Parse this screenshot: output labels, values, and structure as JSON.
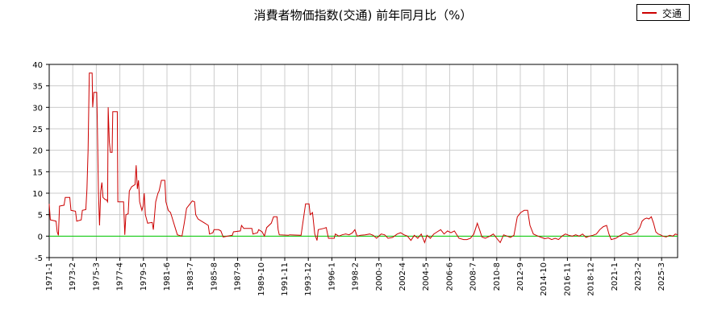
{
  "chart_data": {
    "type": "line",
    "title": "消費者物価指数(交通) 前年同月比（%）",
    "xlabel": "",
    "ylabel": "",
    "ylim": [
      -5,
      40
    ],
    "grid": true,
    "legend_position": "top-right",
    "y_ticks": [
      "40",
      "35",
      "30",
      "25",
      "20",
      "15",
      "10",
      "5",
      "0",
      "-5"
    ],
    "x_ticks": [
      "1971-1",
      "1973-2",
      "1975-3",
      "1977-4",
      "1979-5",
      "1981-6",
      "1983-7",
      "1985-8",
      "1987-9",
      "1989-10",
      "1991-11",
      "1993-12",
      "1996-1",
      "1998-2",
      "2000-3",
      "2002-4",
      "2004-5",
      "2006-6",
      "2008-7",
      "2010-8",
      "2012-9",
      "2014-10",
      "2016-11",
      "2018-12",
      "2021-1",
      "2023-2",
      "2025-3"
    ],
    "x_range": [
      1971.0,
      2025.9
    ],
    "reference_line": {
      "y": 0,
      "color": "#00cc00"
    },
    "series": [
      {
        "name": "交通",
        "color": "#cc0000",
        "points": [
          [
            1971.0,
            7.5
          ],
          [
            1971.1,
            3.8
          ],
          [
            1971.6,
            3.5
          ],
          [
            1971.7,
            1.0
          ],
          [
            1971.8,
            0.2
          ],
          [
            1971.9,
            7.0
          ],
          [
            1972.3,
            7.2
          ],
          [
            1972.4,
            9.0
          ],
          [
            1972.8,
            9.0
          ],
          [
            1972.9,
            6.0
          ],
          [
            1973.3,
            5.8
          ],
          [
            1973.4,
            3.5
          ],
          [
            1973.8,
            3.8
          ],
          [
            1973.9,
            6.0
          ],
          [
            1974.2,
            6.2
          ],
          [
            1974.3,
            11.0
          ],
          [
            1974.4,
            20.0
          ],
          [
            1974.5,
            38.0
          ],
          [
            1974.75,
            38.0
          ],
          [
            1974.8,
            30.0
          ],
          [
            1974.9,
            33.5
          ],
          [
            1975.15,
            33.5
          ],
          [
            1975.2,
            27.0
          ],
          [
            1975.3,
            10.5
          ],
          [
            1975.4,
            2.5
          ],
          [
            1975.5,
            10.5
          ],
          [
            1975.6,
            12.5
          ],
          [
            1975.7,
            9.0
          ],
          [
            1975.9,
            8.5
          ],
          [
            1976.0,
            8.5
          ],
          [
            1976.1,
            8.0
          ],
          [
            1976.15,
            30.0
          ],
          [
            1976.25,
            22.0
          ],
          [
            1976.35,
            19.5
          ],
          [
            1976.5,
            19.5
          ],
          [
            1976.55,
            29.0
          ],
          [
            1976.95,
            29.0
          ],
          [
            1977.0,
            8.0
          ],
          [
            1977.5,
            8.0
          ],
          [
            1977.6,
            0.3
          ],
          [
            1977.7,
            5.0
          ],
          [
            1977.9,
            5.2
          ],
          [
            1978.0,
            10.5
          ],
          [
            1978.2,
            11.5
          ],
          [
            1978.5,
            12.0
          ],
          [
            1978.6,
            16.5
          ],
          [
            1978.7,
            11.0
          ],
          [
            1978.8,
            13.0
          ],
          [
            1978.9,
            8.0
          ],
          [
            1979.1,
            6.0
          ],
          [
            1979.2,
            7.0
          ],
          [
            1979.3,
            10.0
          ],
          [
            1979.4,
            5.0
          ],
          [
            1979.6,
            3.0
          ],
          [
            1980.0,
            3.2
          ],
          [
            1980.1,
            1.5
          ],
          [
            1980.3,
            8.0
          ],
          [
            1980.5,
            10.0
          ],
          [
            1980.6,
            10.5
          ],
          [
            1980.8,
            13.0
          ],
          [
            1981.1,
            13.0
          ],
          [
            1981.2,
            8.0
          ],
          [
            1981.4,
            6.0
          ],
          [
            1981.6,
            5.5
          ],
          [
            1981.8,
            3.8
          ],
          [
            1982.0,
            2.0
          ],
          [
            1982.2,
            0.3
          ],
          [
            1982.6,
            0.0
          ],
          [
            1982.8,
            3.0
          ],
          [
            1983.0,
            6.5
          ],
          [
            1983.3,
            7.5
          ],
          [
            1983.5,
            8.2
          ],
          [
            1983.7,
            8.0
          ],
          [
            1983.8,
            5.0
          ],
          [
            1984.0,
            4.0
          ],
          [
            1984.3,
            3.5
          ],
          [
            1984.6,
            3.0
          ],
          [
            1984.9,
            2.5
          ],
          [
            1985.0,
            0.5
          ],
          [
            1985.3,
            0.8
          ],
          [
            1985.4,
            1.5
          ],
          [
            1985.8,
            1.5
          ],
          [
            1986.0,
            1.2
          ],
          [
            1986.2,
            -0.2
          ],
          [
            1986.6,
            0.0
          ],
          [
            1987.0,
            0.2
          ],
          [
            1987.1,
            1.0
          ],
          [
            1987.7,
            1.2
          ],
          [
            1987.8,
            2.5
          ],
          [
            1988.0,
            1.8
          ],
          [
            1988.7,
            1.8
          ],
          [
            1988.8,
            0.5
          ],
          [
            1989.2,
            0.8
          ],
          [
            1989.3,
            1.5
          ],
          [
            1989.6,
            1.0
          ],
          [
            1989.8,
            0.0
          ],
          [
            1990.0,
            2.0
          ],
          [
            1990.4,
            3.0
          ],
          [
            1990.6,
            4.5
          ],
          [
            1990.9,
            4.5
          ],
          [
            1991.0,
            1.5
          ],
          [
            1991.1,
            0.3
          ],
          [
            1991.9,
            0.2
          ],
          [
            1992.0,
            0.3
          ],
          [
            1993.0,
            0.2
          ],
          [
            1993.1,
            2.0
          ],
          [
            1993.4,
            7.5
          ],
          [
            1993.7,
            7.5
          ],
          [
            1993.8,
            5.0
          ],
          [
            1994.0,
            5.5
          ],
          [
            1994.2,
            0.5
          ],
          [
            1994.4,
            -1.0
          ],
          [
            1994.5,
            1.5
          ],
          [
            1995.0,
            1.8
          ],
          [
            1995.2,
            2.0
          ],
          [
            1995.4,
            -0.5
          ],
          [
            1995.9,
            -0.5
          ],
          [
            1996.0,
            0.5
          ],
          [
            1996.3,
            0.0
          ],
          [
            1996.6,
            0.3
          ],
          [
            1996.9,
            0.5
          ],
          [
            1997.2,
            0.3
          ],
          [
            1997.5,
            0.8
          ],
          [
            1997.7,
            1.5
          ],
          [
            1997.9,
            0.0
          ],
          [
            1998.2,
            0.2
          ],
          [
            1998.6,
            0.3
          ],
          [
            1999.0,
            0.5
          ],
          [
            1999.3,
            0.2
          ],
          [
            1999.6,
            -0.5
          ],
          [
            2000.0,
            0.5
          ],
          [
            2000.3,
            0.3
          ],
          [
            2000.6,
            -0.5
          ],
          [
            2001.0,
            -0.3
          ],
          [
            2001.4,
            0.5
          ],
          [
            2001.7,
            0.8
          ],
          [
            2002.0,
            0.3
          ],
          [
            2002.3,
            0.0
          ],
          [
            2002.6,
            -1.0
          ],
          [
            2002.9,
            0.2
          ],
          [
            2003.2,
            -0.5
          ],
          [
            2003.5,
            0.5
          ],
          [
            2003.8,
            -1.5
          ],
          [
            2004.0,
            0.2
          ],
          [
            2004.3,
            -0.5
          ],
          [
            2004.6,
            0.5
          ],
          [
            2004.9,
            1.0
          ],
          [
            2005.2,
            1.5
          ],
          [
            2005.5,
            0.5
          ],
          [
            2005.8,
            1.2
          ],
          [
            2006.1,
            0.8
          ],
          [
            2006.4,
            1.2
          ],
          [
            2006.8,
            -0.5
          ],
          [
            2007.2,
            -0.8
          ],
          [
            2007.5,
            -0.8
          ],
          [
            2007.8,
            -0.5
          ],
          [
            2008.1,
            0.5
          ],
          [
            2008.4,
            3.0
          ],
          [
            2008.6,
            1.5
          ],
          [
            2008.8,
            -0.2
          ],
          [
            2009.1,
            -0.5
          ],
          [
            2009.5,
            0.0
          ],
          [
            2009.8,
            0.5
          ],
          [
            2010.1,
            -0.5
          ],
          [
            2010.4,
            -1.5
          ],
          [
            2010.7,
            0.3
          ],
          [
            2011.0,
            0.0
          ],
          [
            2011.3,
            -0.3
          ],
          [
            2011.6,
            0.2
          ],
          [
            2011.9,
            4.5
          ],
          [
            2012.2,
            5.5
          ],
          [
            2012.5,
            6.0
          ],
          [
            2012.8,
            6.0
          ],
          [
            2013.0,
            2.5
          ],
          [
            2013.3,
            0.5
          ],
          [
            2013.7,
            0.0
          ],
          [
            2014.0,
            -0.3
          ],
          [
            2014.3,
            -0.6
          ],
          [
            2014.6,
            -0.4
          ],
          [
            2014.9,
            -0.8
          ],
          [
            2015.2,
            -0.5
          ],
          [
            2015.5,
            -0.8
          ],
          [
            2015.8,
            0.0
          ],
          [
            2016.1,
            0.5
          ],
          [
            2016.4,
            0.2
          ],
          [
            2016.7,
            0.0
          ],
          [
            2017.0,
            0.3
          ],
          [
            2017.3,
            0.0
          ],
          [
            2017.6,
            0.5
          ],
          [
            2017.9,
            -0.3
          ],
          [
            2018.2,
            0.0
          ],
          [
            2018.5,
            0.2
          ],
          [
            2018.8,
            0.5
          ],
          [
            2019.1,
            1.5
          ],
          [
            2019.4,
            2.2
          ],
          [
            2019.7,
            2.5
          ],
          [
            2019.9,
            0.5
          ],
          [
            2020.1,
            -0.8
          ],
          [
            2020.5,
            -0.5
          ],
          [
            2020.8,
            0.0
          ],
          [
            2021.1,
            0.5
          ],
          [
            2021.4,
            0.8
          ],
          [
            2021.7,
            0.3
          ],
          [
            2022.0,
            0.5
          ],
          [
            2022.3,
            0.8
          ],
          [
            2022.6,
            2.0
          ],
          [
            2022.8,
            3.5
          ],
          [
            2023.0,
            4.0
          ],
          [
            2023.2,
            4.2
          ],
          [
            2023.4,
            4.0
          ],
          [
            2023.6,
            4.5
          ],
          [
            2023.8,
            3.0
          ],
          [
            2024.0,
            1.0
          ],
          [
            2024.2,
            0.5
          ],
          [
            2024.4,
            0.3
          ],
          [
            2024.6,
            0.0
          ],
          [
            2024.9,
            -0.2
          ],
          [
            2025.2,
            0.2
          ],
          [
            2025.5,
            0.0
          ],
          [
            2025.7,
            0.5
          ],
          [
            2025.9,
            0.3
          ]
        ]
      }
    ]
  }
}
